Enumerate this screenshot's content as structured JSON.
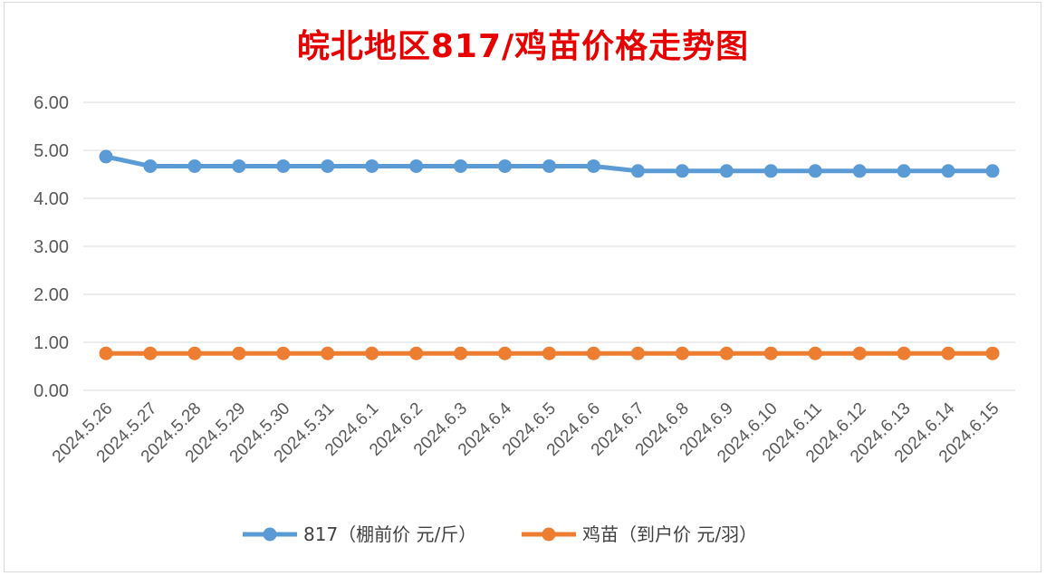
{
  "chart_data": {
    "type": "line",
    "title": "皖北地区817/鸡苗价格走势图",
    "xlabel": "",
    "ylabel": "",
    "ylim": [
      0,
      6
    ],
    "yticks": [
      "0.00",
      "1.00",
      "2.00",
      "3.00",
      "4.00",
      "5.00",
      "6.00"
    ],
    "grid": true,
    "legend_position": "bottom",
    "categories": [
      "2024.5.26",
      "2024.5.27",
      "2024.5.28",
      "2024.5.29",
      "2024.5.30",
      "2024.5.31",
      "2024.6.1",
      "2024.6.2",
      "2024.6.3",
      "2024.6.4",
      "2024.6.5",
      "2024.6.6",
      "2024.6.7",
      "2024.6.8",
      "2024.6.9",
      "2024.6.10",
      "2024.6.11",
      "2024.6.12",
      "2024.6.13",
      "2024.6.14",
      "2024.6.15"
    ],
    "series": [
      {
        "name": "817（棚前价 元/斤）",
        "color": "#5b9bd5",
        "values": [
          4.87,
          4.67,
          4.67,
          4.67,
          4.67,
          4.67,
          4.67,
          4.67,
          4.67,
          4.67,
          4.67,
          4.67,
          4.57,
          4.57,
          4.57,
          4.57,
          4.57,
          4.57,
          4.57,
          4.57,
          4.57
        ]
      },
      {
        "name": "鸡苗（到户价 元/羽）",
        "color": "#ed7d31",
        "values": [
          0.77,
          0.77,
          0.77,
          0.77,
          0.77,
          0.77,
          0.77,
          0.77,
          0.77,
          0.77,
          0.77,
          0.77,
          0.77,
          0.77,
          0.77,
          0.77,
          0.77,
          0.77,
          0.77,
          0.77,
          0.77
        ]
      }
    ]
  }
}
